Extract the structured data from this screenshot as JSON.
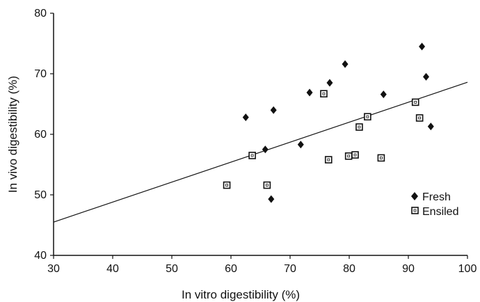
{
  "chart_data": {
    "type": "scatter",
    "title": "",
    "xlabel": "In vitro digestibility (%)",
    "ylabel": "In vivo digestibility (%)",
    "xlim": [
      30,
      100
    ],
    "ylim": [
      40,
      80
    ],
    "xticks": [
      "30",
      "40",
      "50",
      "60",
      "70",
      "80",
      "90",
      "100"
    ],
    "yticks": [
      "40",
      "50",
      "60",
      "70",
      "80"
    ],
    "grid": false,
    "legend_position": "right",
    "series": [
      {
        "name": "Fresh",
        "marker": "filled-diamond",
        "color": "#111111",
        "points": [
          [
            62.5,
            62.8
          ],
          [
            65.8,
            57.5
          ],
          [
            67.2,
            64.0
          ],
          [
            66.8,
            49.3
          ],
          [
            71.8,
            58.3
          ],
          [
            73.3,
            66.9
          ],
          [
            76.7,
            68.5
          ],
          [
            79.3,
            71.6
          ],
          [
            85.8,
            66.6
          ],
          [
            92.3,
            74.5
          ],
          [
            93.0,
            69.5
          ],
          [
            93.8,
            61.3
          ]
        ]
      },
      {
        "name": "Ensiled",
        "marker": "open-square",
        "color": "#111111",
        "points": [
          [
            59.3,
            51.6
          ],
          [
            63.6,
            56.5
          ],
          [
            66.1,
            51.6
          ],
          [
            75.7,
            66.7
          ],
          [
            76.5,
            55.8
          ],
          [
            79.9,
            56.4
          ],
          [
            81.0,
            56.6
          ],
          [
            81.7,
            61.2
          ],
          [
            83.1,
            62.9
          ],
          [
            85.4,
            56.1
          ],
          [
            91.2,
            65.3
          ],
          [
            91.9,
            62.7
          ]
        ]
      }
    ],
    "trendline": {
      "x": [
        30,
        100
      ],
      "y": [
        45.5,
        68.6
      ]
    }
  }
}
